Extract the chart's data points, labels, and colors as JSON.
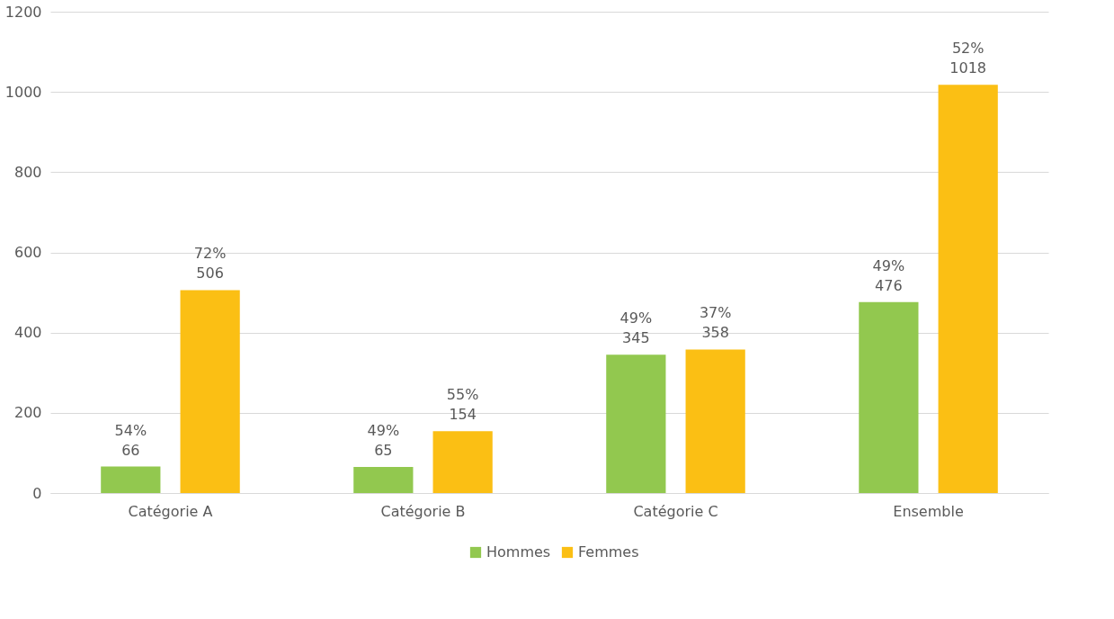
{
  "chart_data": {
    "type": "bar",
    "categories": [
      "Catégorie A",
      "Catégorie B",
      "Catégorie C",
      "Ensemble"
    ],
    "series": [
      {
        "name": "Hommes",
        "color": "#92c84f",
        "values": [
          66,
          65,
          345,
          476
        ],
        "value_labels": [
          "54%\n66",
          "49%\n65",
          "49%\n345",
          "49%\n476"
        ]
      },
      {
        "name": "Femmes",
        "color": "#fbbf14",
        "values": [
          506,
          154,
          358,
          1018
        ],
        "value_labels": [
          "72%\n506",
          "55%\n154",
          "37%\n358",
          "52%\n1018"
        ]
      }
    ],
    "ylim": [
      0,
      1200
    ],
    "yticks": [
      0,
      200,
      400,
      600,
      800,
      1000,
      1200
    ],
    "grid": "y",
    "legend": "bottom"
  }
}
